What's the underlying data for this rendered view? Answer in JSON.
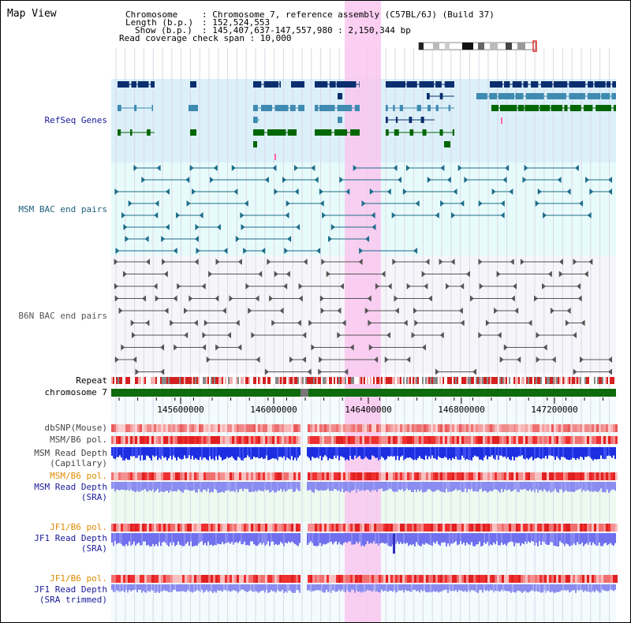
{
  "title": "Map View",
  "info": {
    "chromosome_key": "Chromosome",
    "chromosome_val": ": Chromosome 7, reference assembly (C57BL/6J) (Build 37)",
    "length_key": "Length (b.p.)",
    "length_val": ": 152,524,553",
    "show_key": "Show (b.p.)",
    "show_val": ": 145,407,637-147,557,980 : 2,150,344 bp",
    "span_line": "Read coverage check span : 10,000"
  },
  "tracks": {
    "refseq": "RefSeq Genes",
    "msm_bac": "MSM BAC end pairs",
    "b6n_bac": "B6N BAC end pairs",
    "repeat": "Repeat",
    "chromosome": "chromosome 7",
    "dbsnp": "dbSNP(Mouse)",
    "msm_pol": "MSM/B6 pol.",
    "msm_depth_cap_1": "MSM Read Depth",
    "msm_depth_cap_2": "(Capillary)",
    "msm_pol2": "MSM/B6 pol.",
    "msm_depth_sra_1": "MSM Read Depth",
    "msm_depth_sra_2": "(SRA)",
    "jf1_pol": "JF1/B6 pol.",
    "jf1_depth_1": "JF1 Read Depth",
    "jf1_depth_2": "(SRA)",
    "jf1_pol2": "JF1/B6 pol.",
    "jf1_trim_1": "JF1 Read Depth",
    "jf1_trim_2": "(SRA trimmed)"
  },
  "ruler": [
    "145600000",
    "146000000",
    "146400000",
    "146800000",
    "147200000"
  ],
  "colors": {
    "refseq_dark": "#0a2e6e",
    "refseq_mid": "#3f8ab0",
    "refseq_green": "#006600",
    "msm_bac": "#1d6d8a",
    "b6n_bac": "#555555",
    "highlight": "#f9c7ee",
    "label_navy": "#1a1a99",
    "label_orange": "#e08a00",
    "label_gray": "#444444"
  }
}
